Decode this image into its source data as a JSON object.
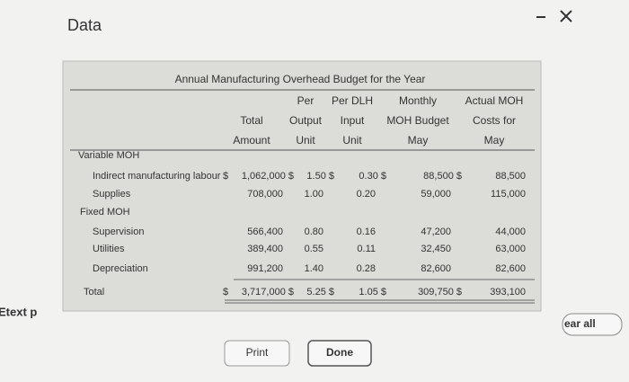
{
  "header": {
    "title": "Data"
  },
  "table": {
    "title": "Annual Manufacturing Overhead Budget for the Year",
    "header_rows": [
      [
        null,
        "Per",
        "Per DLH",
        "Monthly",
        "Actual MOH"
      ],
      [
        "Total",
        "Output",
        "Input",
        "MOH Budget",
        "Costs for"
      ],
      [
        "Amount",
        "Unit",
        "Unit",
        "May",
        "May"
      ]
    ],
    "rows": [
      {
        "label": "Variable MOH",
        "cells": [
          null,
          null,
          null,
          null,
          null,
          null
        ]
      },
      {
        "label": "Indirect manufacturing labour",
        "cells": [
          "$",
          "1,062,000 $",
          "1.50 $",
          "0.30 $",
          "88,500 $",
          "88,500"
        ]
      },
      {
        "label": "Supplies",
        "cells": [
          null,
          "708,000",
          "1.00",
          "0.20",
          "59,000",
          "115,000"
        ]
      },
      {
        "label": "Fixed MOH",
        "cells": [
          null,
          null,
          null,
          null,
          null,
          null
        ]
      },
      {
        "label": "Supervision",
        "cells": [
          null,
          "566,400",
          "0.80",
          "0.16",
          "47,200",
          "44,000"
        ]
      },
      {
        "label": "Utilities",
        "cells": [
          null,
          "389,400",
          "0.55",
          "0.11",
          "32,450",
          "63,000"
        ]
      },
      {
        "label": "Depreciation",
        "cells": [
          null,
          "991,200",
          "1.40",
          "0.28",
          "82,600",
          "82,600"
        ]
      },
      {
        "label": "Total",
        "cells": [
          "$",
          "3,717,000 $",
          "5.25 $",
          "1.05 $",
          "309,750 $",
          "393,100"
        ]
      }
    ]
  },
  "buttons": {
    "print": "Print",
    "done": "Done"
  },
  "side": {
    "left": "Etext p",
    "right": "ear all"
  }
}
